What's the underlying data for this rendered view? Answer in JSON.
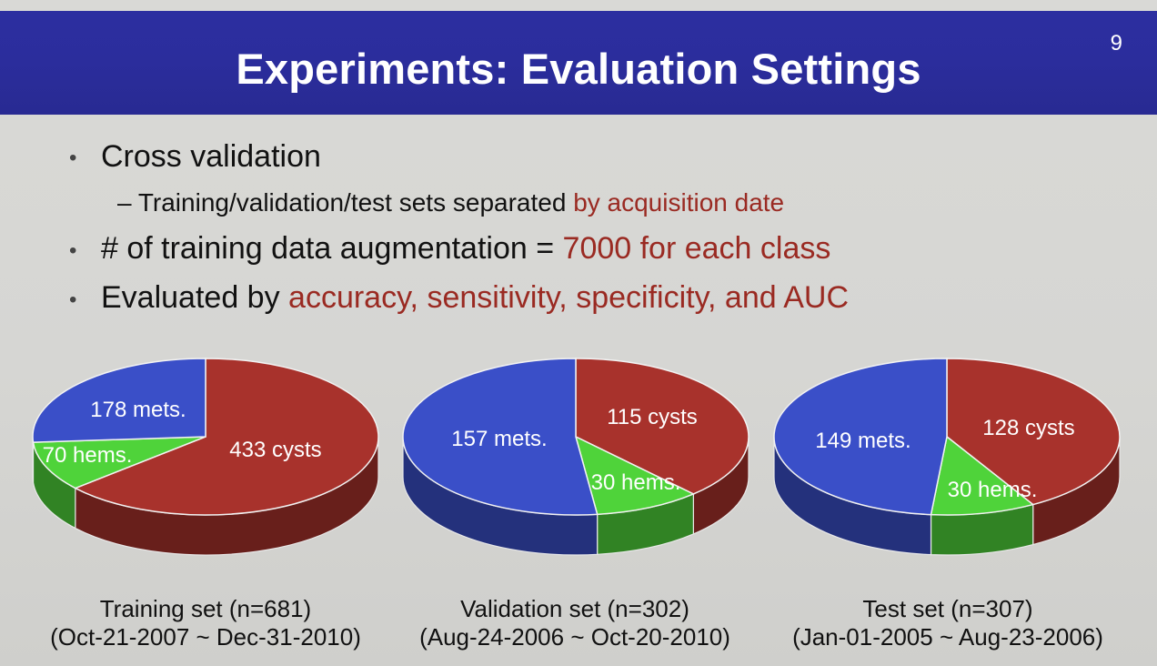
{
  "slide": {
    "title": "Experiments: Evaluation Settings",
    "number": "9",
    "bullets": [
      {
        "text": "Cross validation",
        "sub": {
          "text": "– Training/validation/test sets separated ",
          "highlight": "by acquisition date"
        }
      },
      {
        "text": "# of training data augmentation = ",
        "highlight": "7000 for each class"
      },
      {
        "text": "Evaluated by ",
        "highlight": "accuracy, sensitivity, specificity, and AUC"
      }
    ],
    "bullet_marker": "•",
    "highlight_color": "#9a2a22"
  },
  "colors": {
    "mets": "#3a4fc8",
    "cysts": "#a8322c",
    "hems": "#4fd33a"
  },
  "chart_data": [
    {
      "type": "pie",
      "caption_line1": "Training set (n=681)",
      "caption_line2": "(Oct-21-2007 ~ Dec-31-2010)",
      "slices": [
        {
          "label": "433 cysts",
          "value": 433,
          "category": "cysts"
        },
        {
          "label": "70 hems.",
          "value": 70,
          "category": "hems"
        },
        {
          "label": "178 mets.",
          "value": 178,
          "category": "mets"
        }
      ]
    },
    {
      "type": "pie",
      "caption_line1": "Validation set (n=302)",
      "caption_line2": "(Aug-24-2006 ~ Oct-20-2010)",
      "slices": [
        {
          "label": "115 cysts",
          "value": 115,
          "category": "cysts"
        },
        {
          "label": "30 hems.",
          "value": 30,
          "category": "hems"
        },
        {
          "label": "157 mets.",
          "value": 157,
          "category": "mets"
        }
      ]
    },
    {
      "type": "pie",
      "caption_line1": "Test set (n=307)",
      "caption_line2": "(Jan-01-2005 ~ Aug-23-2006)",
      "slices": [
        {
          "label": "128 cysts",
          "value": 128,
          "category": "cysts"
        },
        {
          "label": "30 hems.",
          "value": 30,
          "category": "hems"
        },
        {
          "label": "149 mets.",
          "value": 149,
          "category": "mets"
        }
      ]
    }
  ]
}
